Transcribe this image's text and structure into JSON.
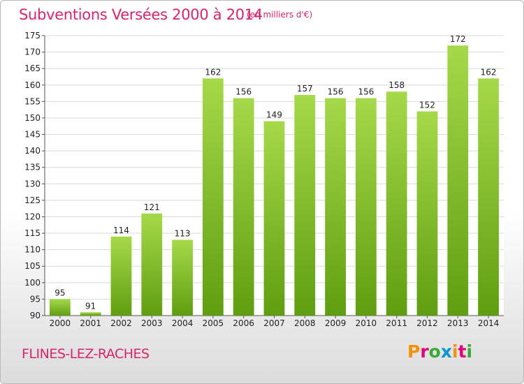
{
  "header": {
    "title": "Subventions Versées 2000 à 2014",
    "subtitle": "(en milliers d'€)"
  },
  "footer": {
    "commune": "FLINES-LEZ-RACHES",
    "logo_text": "Proxiti",
    "logo_colors": [
      "#f39200",
      "#e2007a",
      "#3aaa35",
      "#0096d6",
      "#f39200",
      "#e2007a",
      "#3aaa35"
    ]
  },
  "colors": {
    "title": "#d6256b",
    "bar_light": "#a6d94a",
    "bar_dark": "#5f9e10",
    "grid": "#d9d9d9"
  },
  "chart_data": {
    "type": "bar",
    "title": "Subventions Versées 2000 à 2014",
    "subtitle": "(en milliers d'€)",
    "categories": [
      "2000",
      "2001",
      "2002",
      "2003",
      "2004",
      "2005",
      "2006",
      "2007",
      "2008",
      "2009",
      "2010",
      "2011",
      "2012",
      "2013",
      "2014"
    ],
    "values": [
      95,
      91,
      114,
      121,
      113,
      162,
      156,
      149,
      157,
      156,
      156,
      158,
      152,
      172,
      162
    ],
    "ylim": [
      90,
      175
    ],
    "ytick_step": 5,
    "grid": true,
    "xlabel": "",
    "ylabel": ""
  }
}
